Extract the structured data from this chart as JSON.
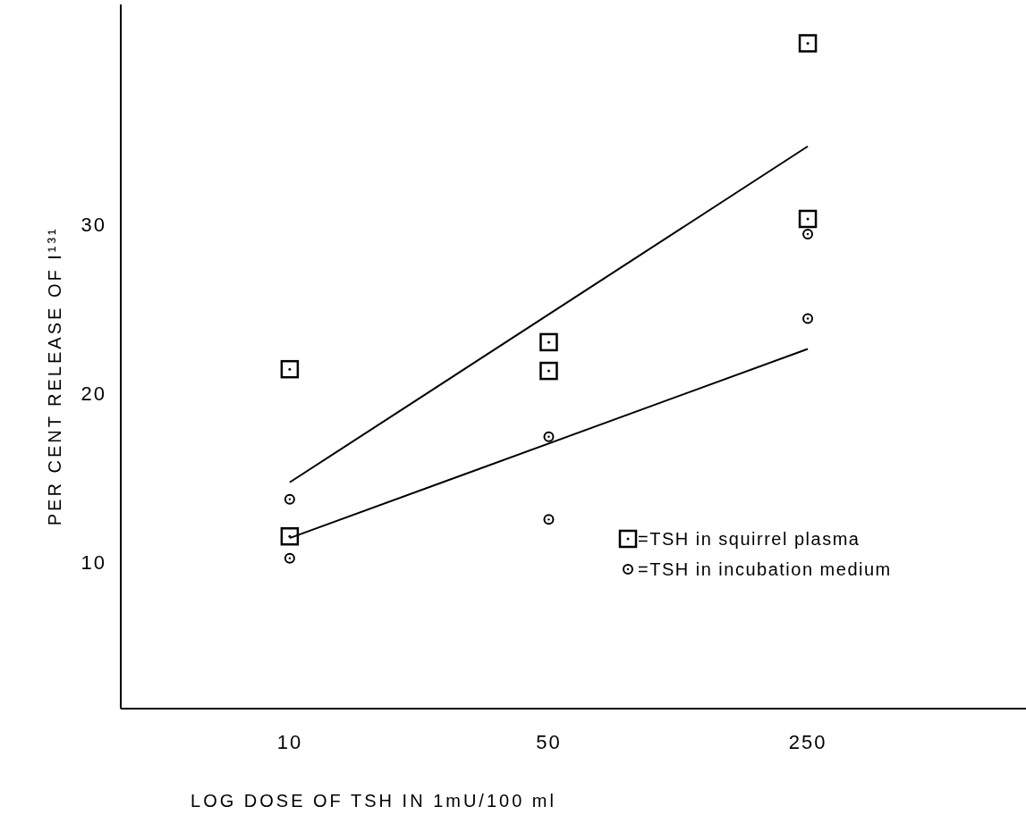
{
  "chart_data": {
    "type": "scatter",
    "xlabel": "LOG DOSE OF TSH IN 1mU/100 ml",
    "ylabel": "PER CENT RELEASE OF I¹³¹",
    "log": "x",
    "xlim": [
      3.5,
      970
    ],
    "xticks": [
      10,
      50,
      250
    ],
    "ylim": [
      1.3,
      43
    ],
    "yticks": [
      10,
      20,
      30
    ],
    "grid": false,
    "legend": "bottom right",
    "series": [
      {
        "name": "=TSH in squirrel plasma",
        "marker": "square",
        "color": "#000000",
        "x": [
          10,
          10,
          50,
          50,
          250,
          250
        ],
        "values": [
          21.4,
          11.5,
          23.0,
          21.3,
          40.7,
          30.3
        ]
      },
      {
        "name": "=TSH in incubation medium",
        "marker": "circle",
        "color": "#000000",
        "x": [
          10,
          10,
          50,
          50,
          250,
          250
        ],
        "values": [
          13.7,
          10.2,
          17.4,
          12.5,
          29.4,
          24.4
        ]
      },
      {
        "type": "line",
        "marker": "none",
        "line_style": "solid",
        "color": "#000000",
        "x": [
          10,
          250
        ],
        "values": [
          14.7,
          34.6
        ]
      },
      {
        "type": "line",
        "marker": "none",
        "line_style": "solid",
        "color": "#000000",
        "x": [
          10,
          250
        ],
        "values": [
          11.4,
          22.6
        ]
      }
    ]
  }
}
